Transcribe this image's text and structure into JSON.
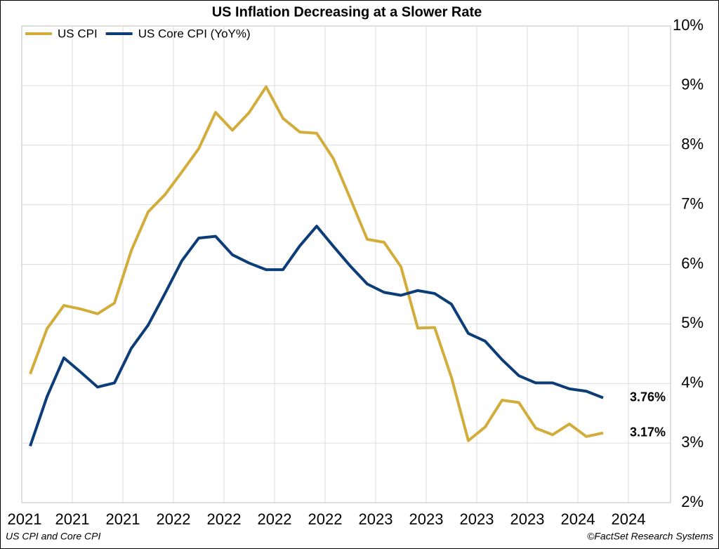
{
  "chart_data": {
    "type": "line",
    "title": "US Inflation Decreasing at a Slower Rate",
    "footnote_left": "US CPI and Core CPI",
    "footnote_right": "©FactSet Research Systems",
    "x": [
      0,
      1,
      2,
      3,
      4,
      5,
      6,
      7,
      8,
      9,
      10,
      11,
      12,
      13,
      14,
      15,
      16,
      17,
      18,
      19,
      20,
      21,
      22,
      23,
      24,
      25,
      26,
      27,
      28,
      29,
      30,
      31,
      32,
      33,
      34
    ],
    "xlim": [
      -0.5,
      38
    ],
    "xticks": [
      {
        "value": -0.5,
        "label": "2021"
      },
      {
        "value": 2.5,
        "label": "2021"
      },
      {
        "value": 5.5,
        "label": "2021"
      },
      {
        "value": 8.5,
        "label": "2022"
      },
      {
        "value": 11.5,
        "label": "2022"
      },
      {
        "value": 14.5,
        "label": "2022"
      },
      {
        "value": 17.5,
        "label": "2022"
      },
      {
        "value": 20.5,
        "label": "2023"
      },
      {
        "value": 23.5,
        "label": "2023"
      },
      {
        "value": 26.5,
        "label": "2023"
      },
      {
        "value": 29.5,
        "label": "2023"
      },
      {
        "value": 32.5,
        "label": "2024"
      },
      {
        "value": 35.5,
        "label": "2024"
      }
    ],
    "ylim": [
      2,
      10
    ],
    "yticks": [
      {
        "value": 2,
        "label": "2%"
      },
      {
        "value": 3,
        "label": "3%"
      },
      {
        "value": 4,
        "label": "4%"
      },
      {
        "value": 5,
        "label": "5%"
      },
      {
        "value": 6,
        "label": "6%"
      },
      {
        "value": 7,
        "label": "7%"
      },
      {
        "value": 8,
        "label": "8%"
      },
      {
        "value": 9,
        "label": "9%"
      },
      {
        "value": 10,
        "label": "10%"
      }
    ],
    "grid": true,
    "legend": "top-left",
    "series": [
      {
        "name": "US CPI",
        "color": "#d3ad3b",
        "values": [
          4.16,
          4.92,
          5.31,
          5.25,
          5.17,
          5.35,
          6.23,
          6.88,
          7.17,
          7.55,
          7.94,
          8.55,
          8.25,
          8.55,
          8.98,
          8.45,
          8.22,
          8.2,
          7.77,
          7.1,
          6.42,
          6.37,
          5.96,
          4.93,
          4.94,
          4.1,
          3.04,
          3.27,
          3.72,
          3.68,
          3.25,
          3.14,
          3.32,
          3.11,
          3.17
        ],
        "value_labels": [
          null,
          null,
          null,
          null,
          null,
          null,
          null,
          null,
          null,
          null,
          null,
          null,
          null,
          null,
          null,
          null,
          null,
          null,
          null,
          null,
          null,
          null,
          null,
          null,
          null,
          null,
          null,
          null,
          null,
          null,
          null,
          null,
          null,
          null,
          "3.17%"
        ]
      },
      {
        "name": "US Core CPI (YoY%)",
        "color": "#0c3d78",
        "values": [
          2.95,
          3.78,
          4.43,
          4.19,
          3.94,
          4.01,
          4.59,
          4.98,
          5.51,
          6.06,
          6.44,
          6.47,
          6.16,
          6.02,
          5.91,
          5.91,
          6.31,
          6.64,
          6.3,
          5.97,
          5.67,
          5.53,
          5.48,
          5.56,
          5.51,
          5.33,
          4.84,
          4.71,
          4.4,
          4.13,
          4.01,
          4.01,
          3.91,
          3.87,
          3.76
        ],
        "value_labels": [
          null,
          null,
          null,
          null,
          null,
          null,
          null,
          null,
          null,
          null,
          null,
          null,
          null,
          null,
          null,
          null,
          null,
          null,
          null,
          null,
          null,
          null,
          null,
          null,
          null,
          null,
          null,
          null,
          null,
          null,
          null,
          null,
          null,
          null,
          "3.76%"
        ]
      }
    ]
  }
}
